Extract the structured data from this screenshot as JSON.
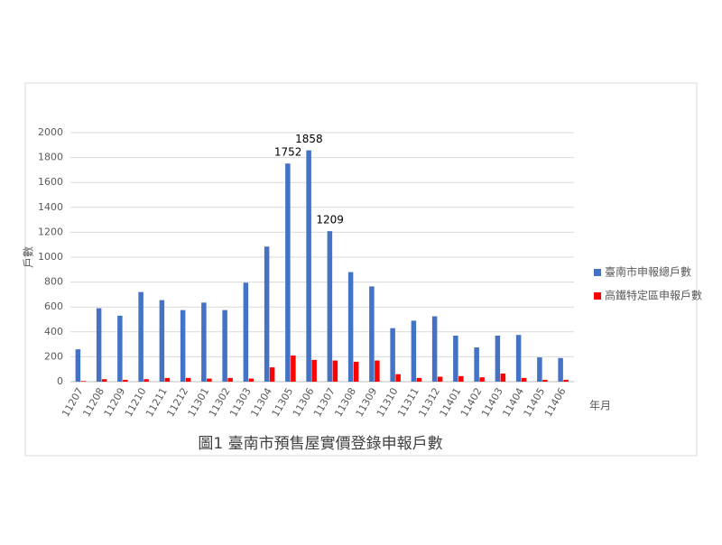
{
  "chart_data": {
    "type": "bar",
    "title": "圖1 臺南市預售屋實價登錄申報戶數",
    "x_label": "年月",
    "y_label": "戶數",
    "categories": [
      "11207",
      "11208",
      "11209",
      "11210",
      "11211",
      "11212",
      "11301",
      "11302",
      "11303",
      "11304",
      "11305",
      "11306",
      "11307",
      "11308",
      "11309",
      "11310",
      "11311",
      "11312",
      "11401",
      "11402",
      "11403",
      "11404",
      "11405",
      "11406"
    ],
    "series": [
      {
        "name": "臺南市申報總戶數",
        "color": "#4472c4",
        "values": [
          260,
          590,
          530,
          720,
          655,
          575,
          635,
          575,
          795,
          1085,
          1752,
          1858,
          1209,
          880,
          765,
          430,
          490,
          525,
          370,
          275,
          370,
          375,
          195,
          190
        ],
        "value_labels": [
          null,
          null,
          null,
          null,
          null,
          null,
          null,
          null,
          null,
          null,
          "1752",
          "1858",
          "1209",
          null,
          null,
          null,
          null,
          null,
          null,
          null,
          null,
          null,
          null,
          null
        ]
      },
      {
        "name": "高鐵特定區申報戶數",
        "color": "#ff0000",
        "values": [
          5,
          20,
          15,
          20,
          30,
          30,
          25,
          30,
          25,
          115,
          210,
          175,
          170,
          160,
          170,
          60,
          30,
          40,
          45,
          35,
          65,
          30,
          15,
          15
        ]
      }
    ],
    "ylim": [
      0,
      2000
    ],
    "yticks": [
      0,
      200,
      400,
      600,
      800,
      1000,
      1200,
      1400,
      1600,
      1800,
      2000
    ],
    "grid": true,
    "legend": "right"
  }
}
